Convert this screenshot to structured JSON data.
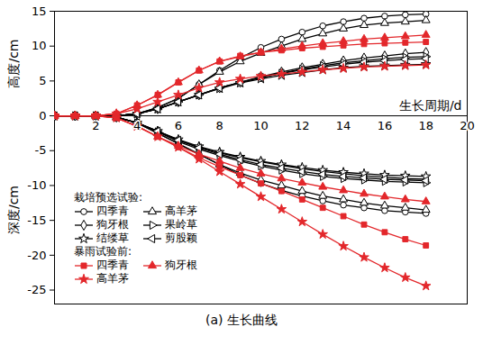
{
  "chart_data": {
    "type": "line",
    "caption": "(a) 生长曲线",
    "x_label": "生长周期/d",
    "y_label_top": "高度/cm",
    "y_label_bottom": "深度/cm",
    "xlim": [
      0,
      20
    ],
    "xticks": [
      2,
      4,
      6,
      8,
      10,
      12,
      14,
      16,
      18,
      20
    ],
    "ylim": [
      -27,
      15
    ],
    "yticks": [
      -25,
      -20,
      -15,
      -10,
      -5,
      0,
      5,
      10,
      15
    ],
    "legend": "bottom-left",
    "legend_groups": [
      "栽培预选试验:",
      "暴雨试验前:"
    ],
    "x": [
      0,
      1,
      2,
      3,
      4,
      5,
      6,
      7,
      8,
      9,
      10,
      11,
      12,
      13,
      14,
      15,
      16,
      17,
      18
    ],
    "series": [
      {
        "name": "四季青",
        "group": "栽培预选试验:",
        "color": "#000000",
        "marker": "circle-open",
        "height": [
          0,
          0,
          0,
          0,
          0.3,
          1.2,
          2.5,
          4.5,
          6.5,
          8.3,
          9.8,
          11,
          12,
          12.9,
          13.5,
          14,
          14.3,
          14.5,
          14.6
        ],
        "depth": [
          0,
          0,
          0,
          -0.2,
          -1,
          -2.5,
          -4,
          -5.5,
          -7,
          -8.5,
          -9.7,
          -10.7,
          -11.5,
          -12.2,
          -12.8,
          -13.2,
          -13.6,
          -13.8,
          -14
        ]
      },
      {
        "name": "高羊茅",
        "group": "栽培预选试验:",
        "color": "#000000",
        "marker": "triangle-open",
        "height": [
          0,
          0,
          0,
          0,
          0.3,
          1.2,
          2.5,
          4.5,
          6.3,
          7.8,
          9,
          10,
          11,
          11.8,
          12.5,
          13,
          13.3,
          13.5,
          13.7
        ],
        "depth": [
          0,
          0,
          0,
          -0.2,
          -1,
          -2.5,
          -4,
          -5.5,
          -7,
          -8.2,
          -9.2,
          -10,
          -10.8,
          -11.5,
          -12,
          -12.5,
          -12.9,
          -13.2,
          -13.5
        ]
      },
      {
        "name": "狗牙根",
        "group": "栽培预选试验:",
        "color": "#000000",
        "marker": "diamond-open",
        "height": [
          0,
          0,
          0,
          0,
          0.3,
          1,
          2,
          3,
          4,
          4.8,
          5.6,
          6.3,
          6.9,
          7.4,
          7.9,
          8.3,
          8.6,
          8.9,
          9.1
        ],
        "depth": [
          0,
          0,
          0,
          -0.2,
          -1,
          -2.2,
          -3.5,
          -4.5,
          -5.3,
          -6,
          -6.6,
          -7.1,
          -7.6,
          -8,
          -8.3,
          -8.6,
          -8.8,
          -9,
          -9.1
        ]
      },
      {
        "name": "果岭草",
        "group": "栽培预选试验:",
        "color": "#000000",
        "marker": "triangle-right-open",
        "height": [
          0,
          0,
          0,
          0,
          0.3,
          1,
          2,
          3,
          4,
          4.8,
          5.5,
          6.1,
          6.7,
          7.2,
          7.6,
          7.9,
          8.2,
          8.4,
          8.5
        ],
        "depth": [
          0,
          0,
          0,
          -0.2,
          -1,
          -2.3,
          -3.7,
          -4.8,
          -5.7,
          -6.5,
          -7.2,
          -7.8,
          -8.3,
          -8.7,
          -9,
          -9.2,
          -9.4,
          -9.5,
          -9.6
        ]
      },
      {
        "name": "结缕草",
        "group": "栽培预选试验:",
        "color": "#000000",
        "marker": "star-open",
        "height": [
          0,
          0,
          0,
          0,
          0.3,
          1,
          2,
          3,
          3.9,
          4.7,
          5.3,
          5.8,
          6.2,
          6.6,
          6.9,
          7.1,
          7.2,
          7.3,
          7.4
        ],
        "depth": [
          0,
          0,
          0,
          -0.2,
          -1,
          -2.2,
          -3.4,
          -4.4,
          -5.2,
          -5.9,
          -6.5,
          -7,
          -7.4,
          -7.8,
          -8.1,
          -8.3,
          -8.5,
          -8.6,
          -8.7
        ]
      },
      {
        "name": "剪股颖",
        "group": "栽培预选试验:",
        "color": "#000000",
        "marker": "triangle-left-open",
        "height": [
          0,
          0,
          0,
          0,
          0.3,
          1,
          2,
          3,
          4,
          4.8,
          5.5,
          6.1,
          6.6,
          7,
          7.4,
          7.7,
          7.9,
          8.1,
          8.2
        ],
        "depth": [
          0,
          0,
          0,
          -0.2,
          -1,
          -2.2,
          -3.5,
          -4.6,
          -5.5,
          -6.3,
          -7,
          -7.5,
          -8,
          -8.4,
          -8.7,
          -8.9,
          -9.1,
          -9.2,
          -9.3
        ]
      },
      {
        "name": "四季青",
        "group": "暴雨试验前:",
        "color": "#e3272b",
        "marker": "square-filled",
        "height": [
          0,
          0,
          0,
          0.3,
          1.5,
          3,
          4.8,
          6.5,
          7.8,
          8.6,
          9.1,
          9.4,
          9.7,
          9.9,
          10.1,
          10.3,
          10.4,
          10.5,
          10.6
        ],
        "depth": [
          0,
          0,
          0,
          -0.3,
          -1.5,
          -3,
          -4.5,
          -6,
          -7.3,
          -8.5,
          -9.7,
          -10.8,
          -12,
          -13.2,
          -14.4,
          -15.6,
          -16.7,
          -17.7,
          -18.6
        ]
      },
      {
        "name": "狗牙根",
        "group": "暴雨试验前:",
        "color": "#e3272b",
        "marker": "triangle-filled",
        "height": [
          0,
          0,
          0,
          0.3,
          1.5,
          3,
          4.8,
          6.5,
          7.8,
          8.5,
          9.1,
          9.6,
          10,
          10.4,
          10.7,
          11,
          11.2,
          11.4,
          11.6
        ],
        "depth": [
          0,
          0,
          0,
          -0.3,
          -1.5,
          -3,
          -4.3,
          -5.5,
          -6.5,
          -7.5,
          -8.3,
          -9,
          -9.6,
          -10.2,
          -10.7,
          -11.2,
          -11.6,
          -12,
          -12.3
        ]
      },
      {
        "name": "高羊茅",
        "group": "暴雨试验前:",
        "color": "#e3272b",
        "marker": "star-filled",
        "height": [
          0,
          0,
          0,
          0.3,
          1,
          2,
          3,
          4,
          4.8,
          5.3,
          5.7,
          6,
          6.3,
          6.6,
          6.8,
          7,
          7.1,
          7.2,
          7.3
        ],
        "depth": [
          0,
          0,
          0,
          -0.3,
          -1.5,
          -3,
          -4.5,
          -6.2,
          -8,
          -9.8,
          -11.6,
          -13.4,
          -15.2,
          -17,
          -18.7,
          -20.3,
          -21.8,
          -23.2,
          -24.4
        ]
      }
    ]
  }
}
